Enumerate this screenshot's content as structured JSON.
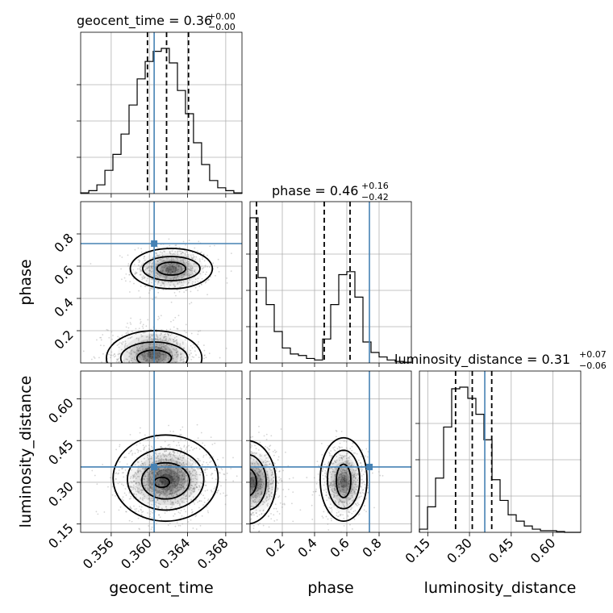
{
  "chart_data": {
    "type": "corner",
    "parameters": [
      "geocent_time",
      "phase",
      "luminosity_distance"
    ],
    "titles": [
      {
        "label": "geocent_time = 0.36",
        "sup": "+0.00",
        "sub": "−0.00"
      },
      {
        "label": "phase = 0.46",
        "sup": "+0.16",
        "sub": "−0.42"
      },
      {
        "label": "luminosity_distance = 0.31",
        "sup": "+0.07",
        "sub": "−0.06"
      }
    ],
    "truths": {
      "geocent_time": 0.3605,
      "phase": 0.74,
      "luminosity_distance": 0.355
    },
    "ranges": {
      "geocent_time": [
        0.3528,
        0.3697
      ],
      "phase": [
        0.0,
        1.0
      ],
      "luminosity_distance": [
        0.12,
        0.7
      ]
    },
    "ticks": {
      "geocent_time": {
        "values": [
          0.356,
          0.36,
          0.364,
          0.368
        ],
        "labels": [
          "0.356",
          "0.360",
          "0.364",
          "0.368"
        ]
      },
      "phase": {
        "values": [
          0.2,
          0.4,
          0.6,
          0.8
        ],
        "labels": [
          "0.2",
          "0.4",
          "0.6",
          "0.8"
        ]
      },
      "luminosity_distance": {
        "values": [
          0.15,
          0.3,
          0.45,
          0.6
        ],
        "labels": [
          "0.15",
          "0.30",
          "0.45",
          "0.60"
        ]
      }
    },
    "quantiles": {
      "geocent_time": [
        0.3598,
        0.3618,
        0.3641
      ],
      "phase": [
        0.04,
        0.46,
        0.62
      ],
      "luminosity_distance": [
        0.25,
        0.31,
        0.38
      ]
    },
    "histograms": {
      "geocent_time": {
        "edges": [
          0.3528,
          0.35365,
          0.3545,
          0.35534,
          0.35618,
          0.35703,
          0.35787,
          0.35872,
          0.35956,
          0.3604,
          0.36125,
          0.36209,
          0.36294,
          0.36378,
          0.36462,
          0.36547,
          0.36631,
          0.36716,
          0.368,
          0.36885,
          0.3697
        ],
        "counts": [
          0.005,
          0.02,
          0.06,
          0.16,
          0.27,
          0.41,
          0.61,
          0.79,
          0.91,
          0.98,
          1.0,
          0.9,
          0.71,
          0.55,
          0.35,
          0.2,
          0.09,
          0.04,
          0.02,
          0.005
        ]
      },
      "phase": {
        "edges": [
          0.0,
          0.05,
          0.1,
          0.15,
          0.2,
          0.25,
          0.3,
          0.35,
          0.4,
          0.45,
          0.5,
          0.55,
          0.6,
          0.65,
          0.7,
          0.75,
          0.8,
          0.85,
          0.9,
          0.95,
          1.0
        ],
        "counts": [
          0.97,
          0.57,
          0.39,
          0.21,
          0.1,
          0.06,
          0.05,
          0.03,
          0.02,
          0.16,
          0.39,
          0.59,
          0.61,
          0.44,
          0.14,
          0.07,
          0.04,
          0.02,
          0.01,
          0.005
        ]
      },
      "luminosity_distance": {
        "edges": [
          0.12,
          0.149,
          0.178,
          0.207,
          0.236,
          0.265,
          0.294,
          0.323,
          0.352,
          0.381,
          0.41,
          0.439,
          0.468,
          0.497,
          0.526,
          0.555,
          0.584,
          0.613,
          0.642,
          0.671,
          0.7
        ],
        "counts": [
          0.02,
          0.16,
          0.34,
          0.66,
          0.9,
          0.91,
          0.84,
          0.74,
          0.58,
          0.33,
          0.2,
          0.11,
          0.07,
          0.04,
          0.02,
          0.01,
          0.01,
          0.005,
          0.0,
          0.0
        ]
      }
    },
    "pairs": [
      {
        "x": "geocent_time",
        "y": "phase",
        "blobs": [
          {
            "cx": 0.3623,
            "cy": 0.58,
            "sx": 0.00155,
            "sy": 0.055,
            "w": 0.45
          },
          {
            "cx": 0.3605,
            "cy": 0.05,
            "sx": 0.00175,
            "sy": 0.07,
            "w": 0.55
          }
        ],
        "contours": [
          {
            "cx": 0.3623,
            "cy": 0.585,
            "rx": 0.0043,
            "ry": 0.125
          },
          {
            "cx": 0.3623,
            "cy": 0.585,
            "rx": 0.003,
            "ry": 0.075
          },
          {
            "cx": 0.3623,
            "cy": 0.585,
            "rx": 0.0015,
            "ry": 0.04
          },
          {
            "cx": 0.3605,
            "cy": 0.03,
            "rx": 0.005,
            "ry": 0.17
          },
          {
            "cx": 0.3605,
            "cy": 0.03,
            "rx": 0.0035,
            "ry": 0.1
          },
          {
            "cx": 0.3605,
            "cy": 0.03,
            "rx": 0.0018,
            "ry": 0.05
          }
        ]
      },
      {
        "x": "geocent_time",
        "y": "luminosity_distance",
        "blobs": [
          {
            "cx": 0.3618,
            "cy": 0.31,
            "sx": 0.0018,
            "sy": 0.05,
            "w": 1.0
          }
        ],
        "contours": [
          {
            "cx": 0.3617,
            "cy": 0.315,
            "rx": 0.0055,
            "ry": 0.155
          },
          {
            "cx": 0.3617,
            "cy": 0.31,
            "rx": 0.004,
            "ry": 0.11
          },
          {
            "cx": 0.3617,
            "cy": 0.305,
            "rx": 0.0025,
            "ry": 0.065
          },
          {
            "cx": 0.3613,
            "cy": 0.3,
            "rx": 0.0008,
            "ry": 0.018
          }
        ]
      },
      {
        "x": "phase",
        "y": "luminosity_distance",
        "blobs": [
          {
            "cx": 0.02,
            "cy": 0.3,
            "sx": 0.07,
            "sy": 0.05,
            "w": 0.55
          },
          {
            "cx": 0.58,
            "cy": 0.3,
            "sx": 0.055,
            "sy": 0.05,
            "w": 0.45
          }
        ],
        "contours": [
          {
            "cx": 0.58,
            "cy": 0.31,
            "rx": 0.145,
            "ry": 0.15
          },
          {
            "cx": 0.58,
            "cy": 0.31,
            "rx": 0.1,
            "ry": 0.105
          },
          {
            "cx": 0.58,
            "cy": 0.305,
            "rx": 0.045,
            "ry": 0.06
          },
          {
            "cx": -0.02,
            "cy": 0.3,
            "rx": 0.18,
            "ry": 0.15
          },
          {
            "cx": -0.02,
            "cy": 0.3,
            "rx": 0.12,
            "ry": 0.1
          },
          {
            "cx": -0.02,
            "cy": 0.3,
            "rx": 0.06,
            "ry": 0.05
          }
        ]
      }
    ],
    "grid": true
  },
  "colors": {
    "truth": "#4682b4",
    "ink": "#000000",
    "grid": "#b0b0b0"
  }
}
